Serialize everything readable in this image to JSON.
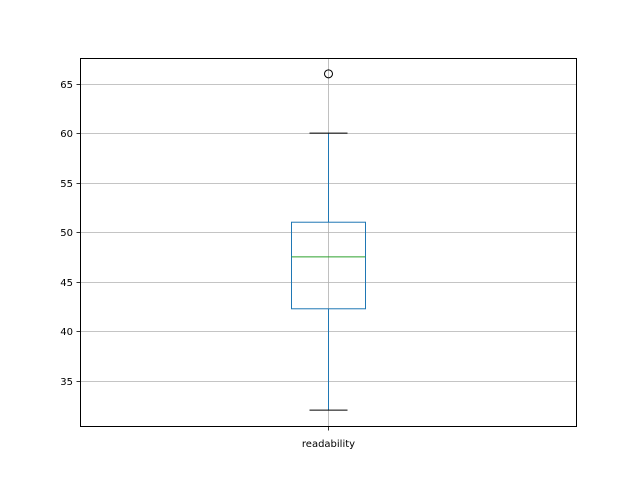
{
  "chart_data": {
    "type": "box",
    "categories": [
      "readability"
    ],
    "boxes": [
      {
        "label": "readability",
        "whisker_low": 32,
        "q1": 42.25,
        "median": 47.5,
        "q3": 51,
        "whisker_high": 60,
        "outliers": [
          66
        ]
      }
    ],
    "yticks": [
      35,
      40,
      45,
      50,
      55,
      60,
      65
    ],
    "ylim": [
      30.3,
      67.6
    ],
    "grid": true,
    "colors": {
      "box": "#1f77b4",
      "median": "#2ca02c",
      "whisker": "#1f77b4",
      "cap": "#000000",
      "grid": "#b0b0b0"
    }
  }
}
